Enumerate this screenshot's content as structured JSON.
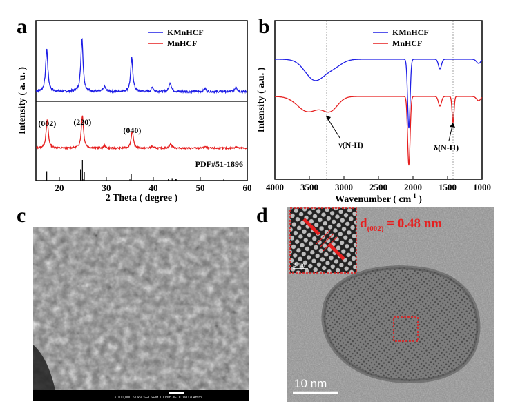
{
  "chart_data": [
    {
      "type": "line",
      "panel": "a",
      "title": "",
      "xlabel": "2 Theta ( degree )",
      "ylabel": "Intensity ( a. u. )",
      "xlim": [
        15,
        60
      ],
      "x_ticks": [
        20,
        30,
        40,
        50,
        60
      ],
      "series": [
        {
          "name": "KMnHCF",
          "color": "#1f1fe6",
          "peaks": [
            [
              17.3,
              1.0
            ],
            [
              24.8,
              1.25
            ],
            [
              29.6,
              0.12
            ],
            [
              35.4,
              0.78
            ],
            [
              39.8,
              0.1
            ],
            [
              43.6,
              0.22
            ],
            [
              51.0,
              0.08
            ],
            [
              57.6,
              0.12
            ]
          ]
        },
        {
          "name": "MnHCF",
          "color": "#e61f1f",
          "peaks": [
            [
              17.4,
              0.9
            ],
            [
              24.9,
              1.05
            ],
            [
              29.6,
              0.08
            ],
            [
              35.5,
              0.55
            ],
            [
              39.8,
              0.06
            ],
            [
              43.7,
              0.14
            ],
            [
              51.0,
              0.05
            ],
            [
              57.6,
              0.06
            ]
          ]
        },
        {
          "name": "PDF#51-1896",
          "type": "stick",
          "color": "#000000",
          "sticks": [
            [
              17.3,
              0.45
            ],
            [
              24.5,
              0.55
            ],
            [
              24.9,
              1.0
            ],
            [
              25.3,
              0.4
            ],
            [
              35.3,
              0.3
            ],
            [
              43.2,
              0.1
            ],
            [
              44.0,
              0.12
            ],
            [
              44.8,
              0.08
            ]
          ]
        }
      ],
      "annotations": [
        {
          "text": "(002)",
          "x": 17.4
        },
        {
          "text": "(220)",
          "x": 24.9
        },
        {
          "text": "(040)",
          "x": 35.5
        }
      ],
      "reference_label": "PDF#51-1896"
    },
    {
      "type": "line",
      "panel": "b",
      "title": "",
      "xlabel": "Wavenumber ( cm⁻¹ )",
      "xlabel_main": "Wavenumber ( cm",
      "xlabel_sup": "-1",
      "xlabel_tail": " )",
      "ylabel": "Intensity ( a.u. )",
      "xlim": [
        4000,
        1000
      ],
      "x_ticks": [
        4000,
        3500,
        3000,
        2500,
        2000,
        1500,
        1000
      ],
      "series": [
        {
          "name": "KMnHCF",
          "color": "#1f1fe6"
        },
        {
          "name": "MnHCF",
          "color": "#e61f1f"
        }
      ],
      "reference_lines": [
        3250,
        1420
      ],
      "annotations": [
        {
          "text": "ν(N-H)",
          "x": 3200
        },
        {
          "text": "δ(N-H)",
          "x": 1420
        }
      ]
    }
  ],
  "panels": {
    "a": {
      "letter": "a"
    },
    "b": {
      "letter": "b"
    },
    "c": {
      "letter": "c",
      "sem_info": "X 100,000   5.0kV  SEI      SEM        100nm  JEOL   WD 8.4mm"
    },
    "d": {
      "letter": "d",
      "d_spacing_main": "d",
      "d_spacing_sub": "(002)",
      "d_spacing_value": " = 0.48 nm",
      "scale_bar": "10 nm",
      "inset_scale": "2 nm"
    }
  },
  "colors": {
    "blue": "#1f1fe6",
    "red": "#e61f1f"
  }
}
